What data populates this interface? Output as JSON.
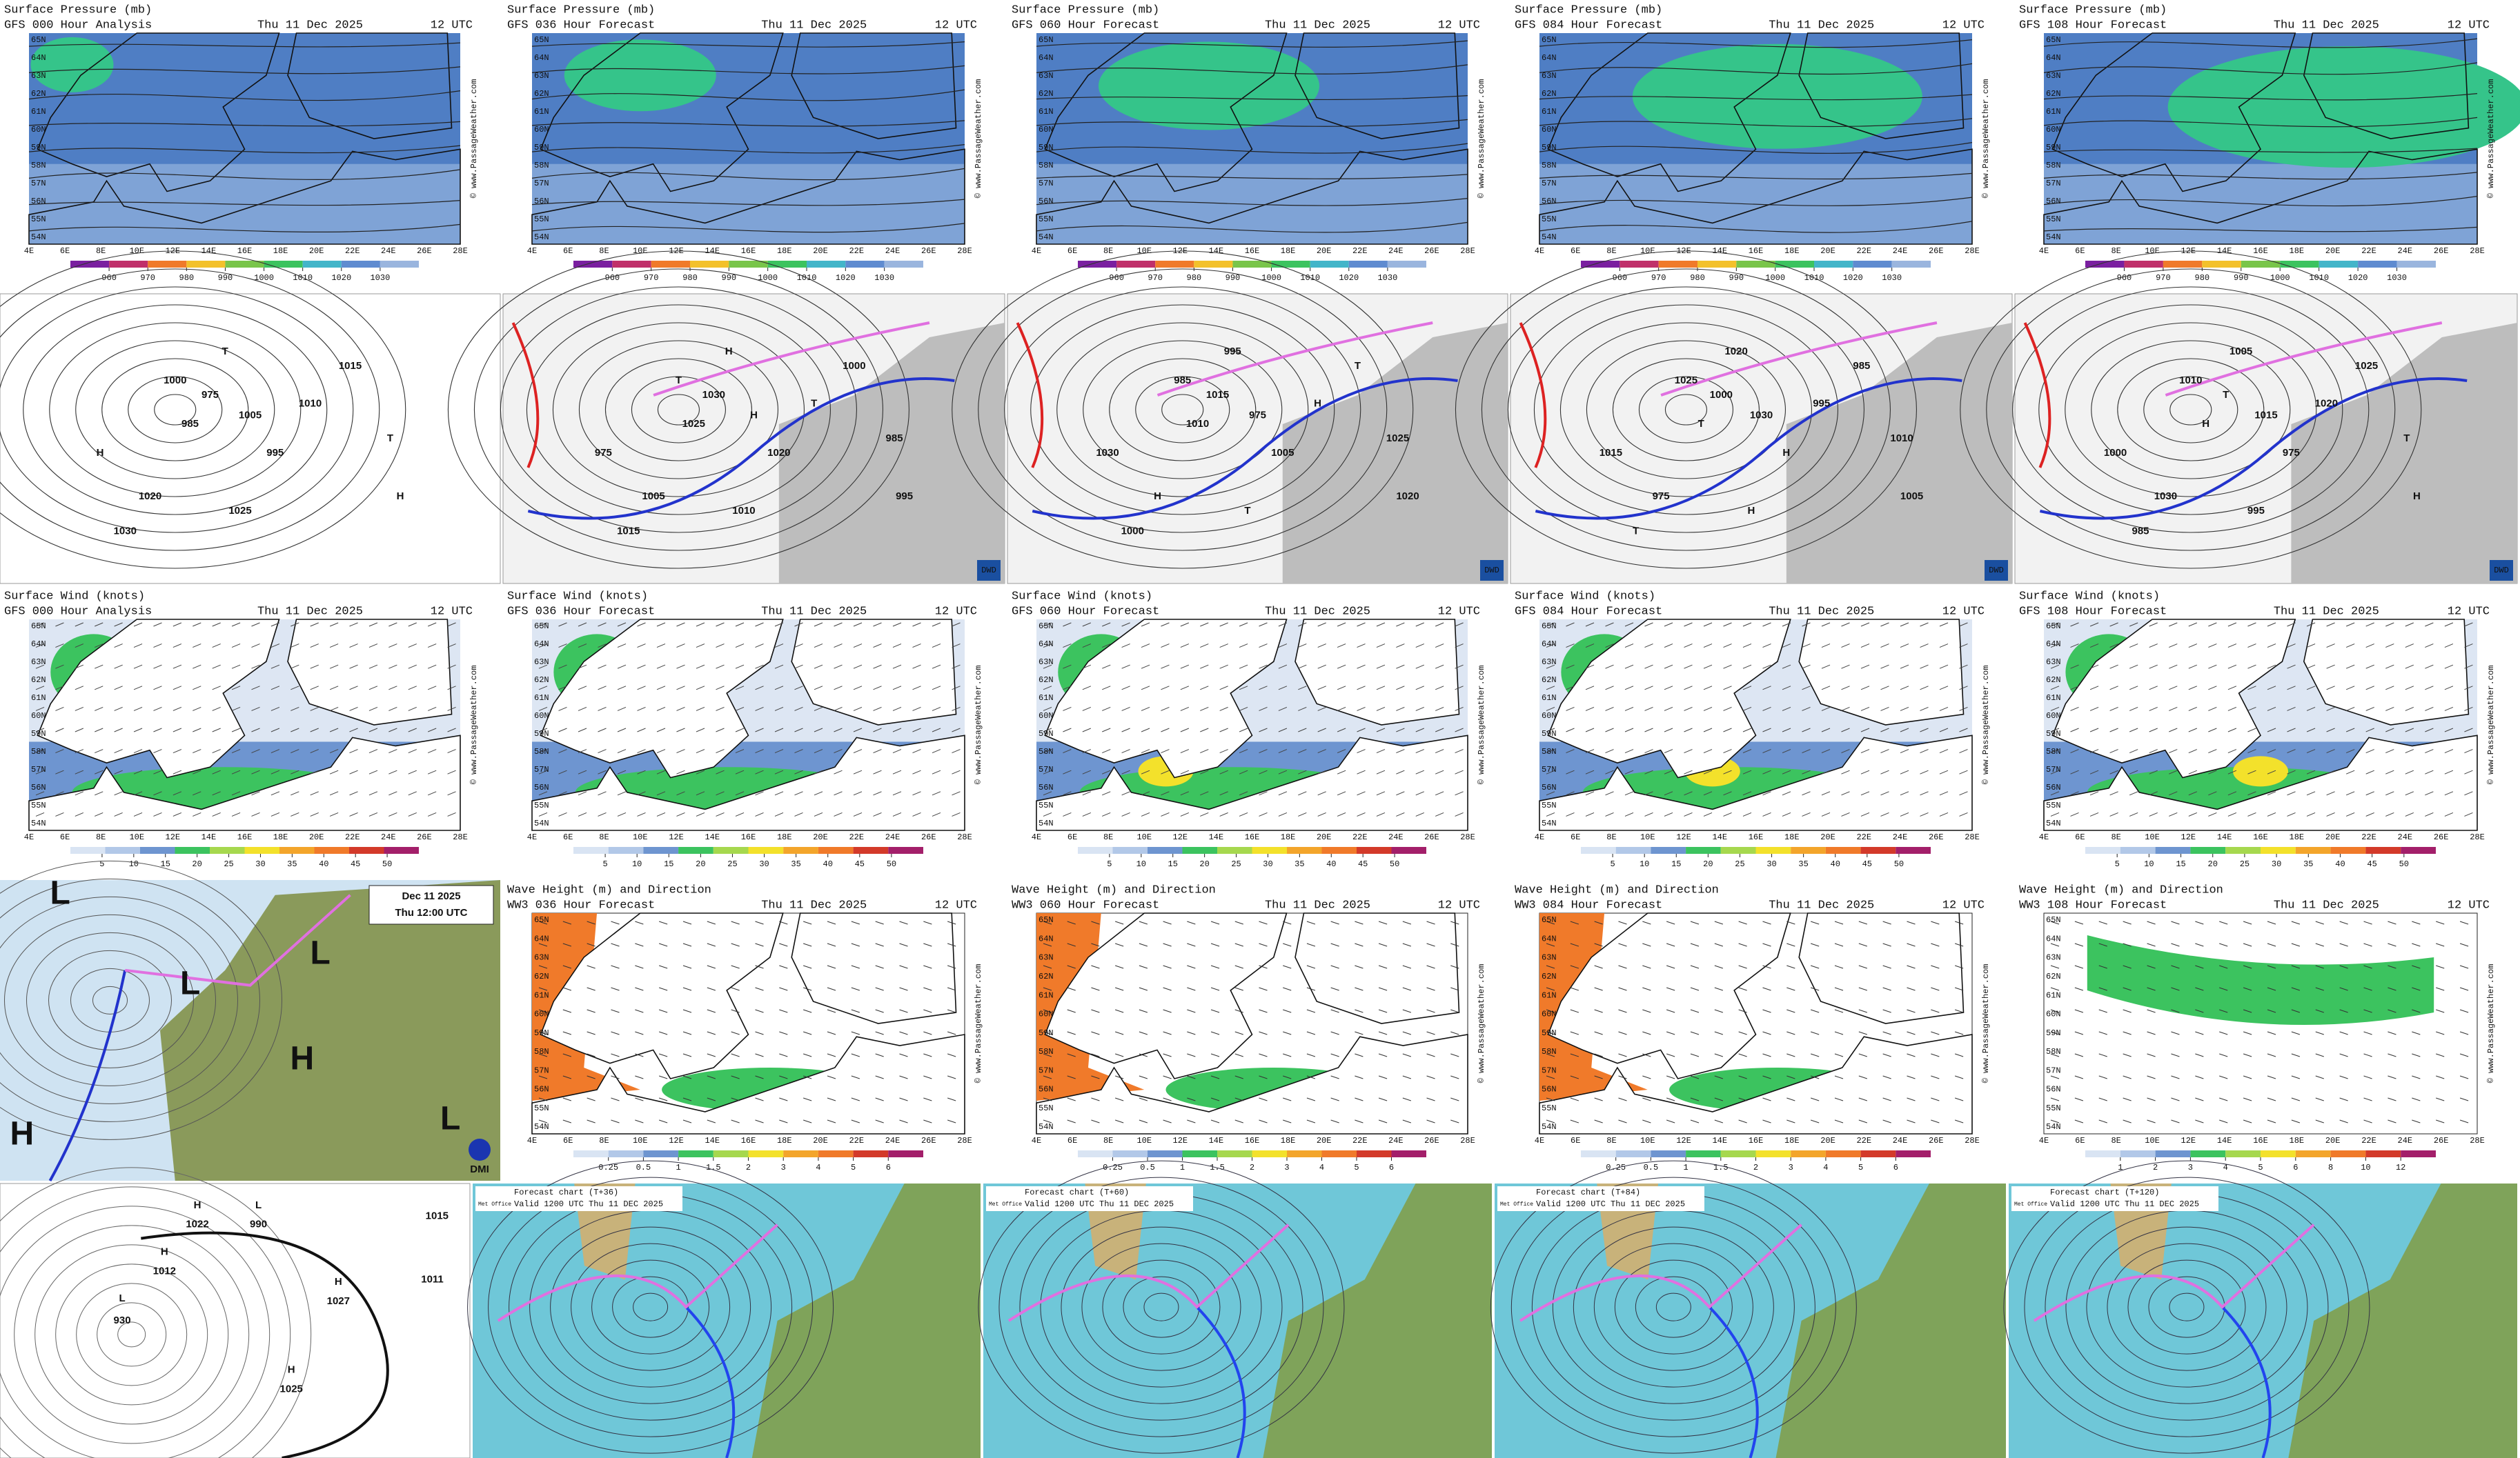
{
  "common": {
    "date": "Thu 11 Dec 2025",
    "time": "12 UTC",
    "credit": "© www.PassageWeather.com"
  },
  "longitudes": [
    "4E",
    "6E",
    "8E",
    "10E",
    "12E",
    "14E",
    "16E",
    "18E",
    "20E",
    "22E",
    "24E",
    "26E",
    "28E"
  ],
  "latitudes": [
    "65N",
    "64N",
    "63N",
    "62N",
    "61N",
    "60N",
    "59N",
    "58N",
    "57N",
    "56N",
    "55N",
    "54N"
  ],
  "gfs_pressure": {
    "title": "Surface Pressure (mb)",
    "runs": [
      "GFS 000 Hour Analysis",
      "GFS 036 Hour Forecast",
      "GFS 060 Hour Forecast",
      "GFS 084 Hour Forecast",
      "GFS 108 Hour Forecast"
    ],
    "legend": [
      960,
      970,
      980,
      990,
      1000,
      1010,
      1020,
      1030
    ]
  },
  "dwd_charts": {
    "logo": "DWD",
    "labels": [
      "H",
      "T",
      "1000",
      "1005",
      "1010",
      "1015",
      "1020",
      "1025",
      "1030",
      "995",
      "985",
      "975",
      "H",
      "T"
    ]
  },
  "gfs_wind": {
    "title": "Surface Wind (knots)",
    "runs": [
      "GFS 000 Hour Analysis",
      "GFS 036 Hour Forecast",
      "GFS 060 Hour Forecast",
      "GFS 084 Hour Forecast",
      "GFS 108 Hour Forecast"
    ],
    "legend": [
      5,
      10,
      15,
      20,
      25,
      30,
      35,
      40,
      45,
      50
    ]
  },
  "dmi_chart": {
    "date": "Dec 11 2025",
    "time": "Thu 12:00 UTC",
    "logo": "DMI",
    "centres": [
      "L",
      "L",
      "L",
      "H",
      "H",
      "L"
    ]
  },
  "ww3_waves": {
    "title": "Wave Height (m) and Direction",
    "runs": [
      "WW3 036 Hour Forecast",
      "WW3 060 Hour Forecast",
      "WW3 084 Hour Forecast",
      "WW3 108 Hour Forecast"
    ],
    "legend": [
      0.25,
      0.5,
      1,
      1.5,
      2,
      3,
      4,
      5,
      6
    ],
    "legend_last": [
      1,
      2,
      3,
      4,
      5,
      6,
      8,
      10,
      12
    ]
  },
  "analysis_chart": {
    "labels": [
      "H",
      "1022",
      "L",
      "990",
      "H",
      "1012",
      "L",
      "930",
      "H",
      "1027",
      "H",
      "1025",
      "1015",
      "1011"
    ]
  },
  "met_office": {
    "logo": "Met Office",
    "titles": [
      "Forecast chart (T+36)",
      "Forecast chart (T+60)",
      "Forecast chart (T+84)",
      "Forecast chart (T+120)"
    ],
    "valid": "Valid 1200 UTC Thu 11 DEC 2025"
  }
}
